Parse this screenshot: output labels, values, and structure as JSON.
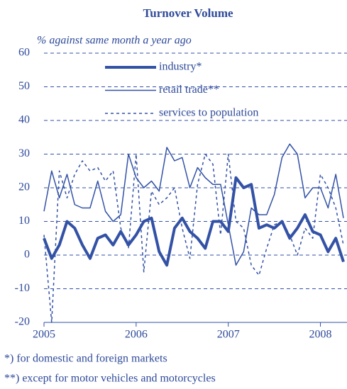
{
  "chart_data": {
    "type": "line",
    "title": "Turnover Volume",
    "subtitle": "% against same month a year ago",
    "x": [
      2005,
      2005.0833,
      2005.1667,
      2005.25,
      2005.3333,
      2005.4167,
      2005.5,
      2005.5833,
      2005.6667,
      2005.75,
      2005.8333,
      2005.9167,
      2006,
      2006.0833,
      2006.1667,
      2006.25,
      2006.3333,
      2006.4167,
      2006.5,
      2006.5833,
      2006.6667,
      2006.75,
      2006.8333,
      2006.9167,
      2007,
      2007.0833,
      2007.1667,
      2007.25,
      2007.3333,
      2007.4167,
      2007.5,
      2007.5833,
      2007.6667,
      2007.75,
      2007.8333,
      2007.9167,
      2008,
      2008.0833,
      2008.1667,
      2008.25
    ],
    "series": [
      {
        "name": "industry*",
        "color": "#3352a6",
        "width": 4,
        "dash": "solid",
        "values": [
          5,
          -1,
          3,
          10,
          8,
          3,
          -1,
          5,
          6,
          3,
          7,
          3,
          6,
          10,
          11,
          1,
          -3,
          8,
          11,
          7,
          5,
          2,
          10,
          10,
          7,
          23,
          20,
          21,
          8,
          9,
          8,
          10,
          5,
          8,
          12,
          7,
          6,
          1,
          5,
          -2
        ]
      },
      {
        "name": "retail trade**",
        "color": "#3352a6",
        "width": 1.5,
        "dash": "solid",
        "values": [
          13,
          25,
          17,
          24,
          15,
          14,
          14,
          22,
          13,
          10,
          12,
          30,
          23,
          20,
          22,
          19,
          32,
          28,
          29,
          20,
          26,
          23,
          21,
          21,
          9,
          -3,
          1,
          14,
          12,
          12,
          18,
          29,
          33,
          30,
          17,
          20,
          20,
          14,
          24,
          11
        ]
      },
      {
        "name": "services to population",
        "color": "#3352a6",
        "width": 1.5,
        "dash": "dotted",
        "values": [
          6,
          -20,
          25,
          17,
          24,
          28,
          25,
          26,
          22,
          25,
          8,
          2,
          30,
          -5,
          19,
          15,
          17,
          20,
          8,
          -1,
          21,
          30,
          27,
          6,
          30,
          10,
          8,
          -3,
          -6,
          2,
          9,
          10,
          6,
          0,
          8,
          5,
          24,
          20,
          14,
          3
        ]
      }
    ],
    "xlim": [
      2005,
      2008.25
    ],
    "xticks": [
      2005,
      2006,
      2007,
      2008
    ],
    "ylim": [
      -20,
      60
    ],
    "yticks": [
      -20,
      -10,
      0,
      10,
      20,
      30,
      40,
      50,
      60
    ],
    "grid": true,
    "footnotes": [
      "*) for domestic and foreign markets",
      "**) except for motor vehicles and motorcycles"
    ]
  }
}
